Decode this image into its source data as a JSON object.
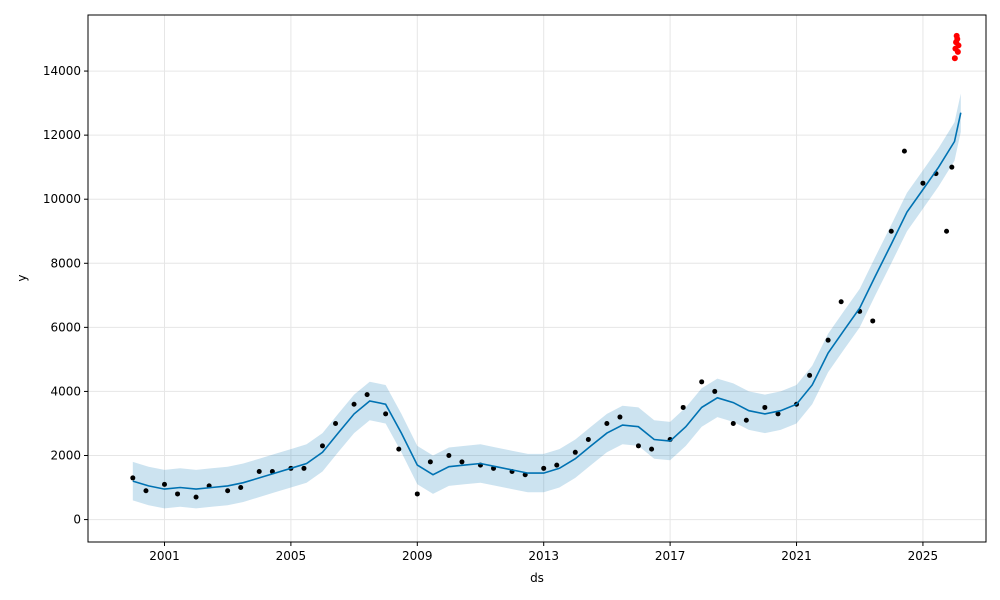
{
  "chart_data": {
    "type": "line",
    "title": "",
    "xlabel": "ds",
    "ylabel": "y",
    "x_axis": {
      "scale": "time",
      "range": [
        "1998-08-01",
        "2026-12-31"
      ],
      "ticks": [
        "2001",
        "2005",
        "2009",
        "2013",
        "2017",
        "2021",
        "2025"
      ]
    },
    "y_axis": {
      "range": [
        -700,
        15750
      ],
      "ticks": [
        0,
        2000,
        4000,
        6000,
        8000,
        10000,
        12000,
        14000
      ]
    },
    "grid": true,
    "legend": "none",
    "colors": {
      "forecast_line": "#0072B2",
      "interval_fill": "#0072B2",
      "observed_points": "#000000",
      "highlight_points": "#ff0000"
    },
    "series": [
      {
        "role": "forecast_yhat",
        "x": [
          "2000-01-01",
          "2000-07-01",
          "2001-01-01",
          "2001-07-01",
          "2002-01-01",
          "2002-07-01",
          "2003-01-01",
          "2003-07-01",
          "2004-01-01",
          "2004-07-01",
          "2005-01-01",
          "2005-07-01",
          "2006-01-01",
          "2006-07-01",
          "2007-01-01",
          "2007-07-01",
          "2008-01-01",
          "2008-07-01",
          "2009-01-01",
          "2009-07-01",
          "2010-01-01",
          "2010-07-01",
          "2011-01-01",
          "2011-07-01",
          "2012-01-01",
          "2012-07-01",
          "2013-01-01",
          "2013-07-01",
          "2014-01-01",
          "2014-07-01",
          "2015-01-01",
          "2015-07-01",
          "2016-01-01",
          "2016-07-01",
          "2017-01-01",
          "2017-07-01",
          "2018-01-01",
          "2018-07-01",
          "2019-01-01",
          "2019-07-01",
          "2020-01-01",
          "2020-07-01",
          "2021-01-01",
          "2021-07-01",
          "2022-01-01",
          "2022-07-01",
          "2023-01-01",
          "2023-07-01",
          "2024-01-01",
          "2024-07-01",
          "2025-01-01",
          "2025-07-01",
          "2026-01-01",
          "2026-03-15"
        ],
        "yhat": [
          1200,
          1050,
          950,
          1000,
          950,
          1000,
          1050,
          1150,
          1300,
          1450,
          1600,
          1750,
          2100,
          2700,
          3300,
          3700,
          3600,
          2700,
          1700,
          1400,
          1650,
          1700,
          1750,
          1650,
          1550,
          1450,
          1450,
          1600,
          1900,
          2300,
          2700,
          2950,
          2900,
          2500,
          2450,
          2900,
          3500,
          3800,
          3650,
          3400,
          3300,
          3400,
          3600,
          4200,
          5200,
          5900,
          6600,
          7600,
          8600,
          9600,
          10300,
          11000,
          11800,
          12700
        ],
        "lower": [
          600,
          450,
          350,
          400,
          350,
          400,
          450,
          550,
          700,
          850,
          1000,
          1150,
          1500,
          2100,
          2700,
          3100,
          3000,
          2100,
          1100,
          800,
          1050,
          1100,
          1150,
          1050,
          950,
          850,
          850,
          1000,
          1300,
          1700,
          2100,
          2350,
          2300,
          1900,
          1850,
          2300,
          2900,
          3200,
          3050,
          2800,
          2700,
          2800,
          3000,
          3600,
          4600,
          5300,
          6000,
          7000,
          8000,
          9000,
          9700,
          10400,
          11200,
          12100
        ],
        "upper": [
          1800,
          1650,
          1550,
          1600,
          1550,
          1600,
          1650,
          1750,
          1900,
          2050,
          2200,
          2350,
          2700,
          3300,
          3900,
          4300,
          4200,
          3300,
          2300,
          2000,
          2250,
          2300,
          2350,
          2250,
          2150,
          2050,
          2050,
          2200,
          2500,
          2900,
          3300,
          3550,
          3500,
          3100,
          3050,
          3500,
          4100,
          4400,
          4250,
          4000,
          3900,
          4000,
          4200,
          4800,
          5800,
          6500,
          7200,
          8200,
          9200,
          10200,
          10900,
          11600,
          12400,
          13300
        ]
      },
      {
        "role": "observed_y",
        "x": [
          "2000-01-01",
          "2000-06-01",
          "2001-01-01",
          "2001-06-01",
          "2002-01-01",
          "2002-06-01",
          "2003-01-01",
          "2003-06-01",
          "2004-01-01",
          "2004-06-01",
          "2005-01-01",
          "2005-06-01",
          "2006-01-01",
          "2006-06-01",
          "2007-01-01",
          "2007-06-01",
          "2008-01-01",
          "2008-06-01",
          "2009-01-01",
          "2009-06-01",
          "2010-01-01",
          "2010-06-01",
          "2011-01-01",
          "2011-06-01",
          "2012-01-01",
          "2012-06-01",
          "2013-01-01",
          "2013-06-01",
          "2014-01-01",
          "2014-06-01",
          "2015-01-01",
          "2015-06-01",
          "2016-01-01",
          "2016-06-01",
          "2017-01-01",
          "2017-06-01",
          "2018-01-01",
          "2018-06-01",
          "2019-01-01",
          "2019-06-01",
          "2020-01-01",
          "2020-06-01",
          "2021-01-01",
          "2021-06-01",
          "2022-01-01",
          "2022-06-01",
          "2023-01-01",
          "2023-06-01",
          "2024-01-01",
          "2024-06-01",
          "2025-01-01",
          "2025-06-01",
          "2025-10-01",
          "2025-12-01"
        ],
        "values": [
          1300,
          900,
          1100,
          800,
          700,
          1050,
          900,
          1000,
          1500,
          1500,
          1600,
          1600,
          2300,
          3000,
          3600,
          3900,
          3300,
          2200,
          800,
          1800,
          2000,
          1800,
          1700,
          1600,
          1500,
          1400,
          1600,
          1700,
          2100,
          2500,
          3000,
          3200,
          2300,
          2200,
          2500,
          3500,
          4300,
          4000,
          3000,
          3100,
          3500,
          3300,
          3600,
          4500,
          5600,
          6800,
          6500,
          6200,
          9000,
          11500,
          10500,
          10800,
          9000,
          11000
        ]
      },
      {
        "role": "highlighted_y",
        "x": [
          "2026-01-05",
          "2026-01-12",
          "2026-01-19",
          "2026-01-26",
          "2026-02-02",
          "2026-02-09",
          "2026-02-16"
        ],
        "values": [
          14400,
          14700,
          14900,
          15100,
          15000,
          14600,
          14800
        ]
      }
    ]
  }
}
